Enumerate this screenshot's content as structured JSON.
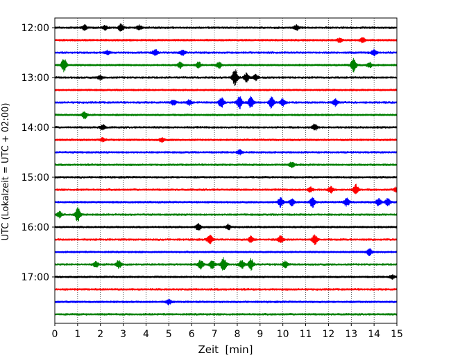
{
  "chart_data": {
    "type": "line",
    "title": "",
    "xlabel": "Zeit  [min]",
    "ylabel": "UTC (Lokalzeit = UTC + 02:00)",
    "xlim": [
      0,
      15
    ],
    "x_ticks": [
      0,
      1,
      2,
      3,
      4,
      5,
      6,
      7,
      8,
      9,
      10,
      11,
      12,
      13,
      14,
      15
    ],
    "y_tick_labels": [
      "12:00",
      "13:00",
      "14:00",
      "15:00",
      "16:00",
      "17:00"
    ],
    "grid": "vertical dotted at each minute",
    "trace_colors": [
      "#000000",
      "#ff0000",
      "#0000ff",
      "#008000"
    ],
    "traces": [
      {
        "start": "12:00",
        "bursts": [
          [
            1.3,
            0.25
          ],
          [
            2.2,
            0.2
          ],
          [
            2.9,
            0.4
          ],
          [
            3.7,
            0.25
          ],
          [
            10.6,
            0.25
          ]
        ]
      },
      {
        "start": "12:15",
        "bursts": [
          [
            12.5,
            0.2
          ],
          [
            13.5,
            0.25
          ]
        ]
      },
      {
        "start": "12:30",
        "bursts": [
          [
            2.3,
            0.2
          ],
          [
            4.4,
            0.3
          ],
          [
            5.6,
            0.25
          ],
          [
            14.0,
            0.3
          ]
        ]
      },
      {
        "start": "12:45",
        "bursts": [
          [
            0.4,
            0.7
          ],
          [
            5.5,
            0.3
          ],
          [
            6.3,
            0.3
          ],
          [
            7.2,
            0.3
          ],
          [
            13.1,
            0.7
          ],
          [
            13.8,
            0.25
          ]
        ]
      },
      {
        "start": "13:00",
        "bursts": [
          [
            2.0,
            0.2
          ],
          [
            7.9,
            0.85
          ],
          [
            8.4,
            0.45
          ],
          [
            8.8,
            0.3
          ]
        ]
      },
      {
        "start": "13:15",
        "bursts": []
      },
      {
        "start": "13:30",
        "bursts": [
          [
            5.2,
            0.25
          ],
          [
            5.9,
            0.25
          ],
          [
            7.3,
            0.5
          ],
          [
            8.1,
            0.6
          ],
          [
            8.6,
            0.6
          ],
          [
            9.5,
            0.55
          ],
          [
            10.0,
            0.35
          ],
          [
            12.3,
            0.35
          ]
        ]
      },
      {
        "start": "13:45",
        "bursts": [
          [
            1.3,
            0.35
          ]
        ]
      },
      {
        "start": "14:00",
        "bursts": [
          [
            2.1,
            0.25
          ],
          [
            11.4,
            0.3
          ]
        ]
      },
      {
        "start": "14:15",
        "bursts": [
          [
            2.1,
            0.2
          ],
          [
            4.7,
            0.2
          ]
        ]
      },
      {
        "start": "14:30",
        "bursts": [
          [
            8.1,
            0.25
          ]
        ]
      },
      {
        "start": "14:45",
        "bursts": [
          [
            10.4,
            0.3
          ]
        ]
      },
      {
        "start": "15:00",
        "bursts": []
      },
      {
        "start": "15:15",
        "bursts": [
          [
            11.2,
            0.25
          ],
          [
            12.1,
            0.3
          ],
          [
            13.2,
            0.5
          ],
          [
            15.0,
            0.3
          ]
        ]
      },
      {
        "start": "15:30",
        "bursts": [
          [
            9.9,
            0.5
          ],
          [
            10.4,
            0.35
          ],
          [
            11.3,
            0.5
          ],
          [
            12.8,
            0.4
          ],
          [
            14.2,
            0.35
          ],
          [
            14.6,
            0.35
          ]
        ]
      },
      {
        "start": "15:45",
        "bursts": [
          [
            0.2,
            0.3
          ],
          [
            1.0,
            0.7
          ]
        ]
      },
      {
        "start": "16:00",
        "bursts": [
          [
            6.3,
            0.35
          ],
          [
            7.6,
            0.25
          ]
        ]
      },
      {
        "start": "16:15",
        "bursts": [
          [
            6.8,
            0.45
          ],
          [
            8.6,
            0.3
          ],
          [
            9.9,
            0.35
          ],
          [
            11.4,
            0.5
          ]
        ]
      },
      {
        "start": "16:30",
        "bursts": [
          [
            13.8,
            0.35
          ]
        ]
      },
      {
        "start": "16:45",
        "bursts": [
          [
            1.8,
            0.3
          ],
          [
            2.8,
            0.4
          ],
          [
            6.4,
            0.45
          ],
          [
            6.9,
            0.4
          ],
          [
            7.4,
            0.7
          ],
          [
            8.2,
            0.4
          ],
          [
            8.6,
            0.55
          ],
          [
            10.1,
            0.3
          ]
        ]
      },
      {
        "start": "17:00",
        "bursts": [
          [
            14.8,
            0.2
          ]
        ]
      },
      {
        "start": "17:15",
        "bursts": []
      },
      {
        "start": "17:30",
        "bursts": [
          [
            5.0,
            0.25
          ]
        ]
      },
      {
        "start": "17:45",
        "bursts": []
      }
    ]
  }
}
